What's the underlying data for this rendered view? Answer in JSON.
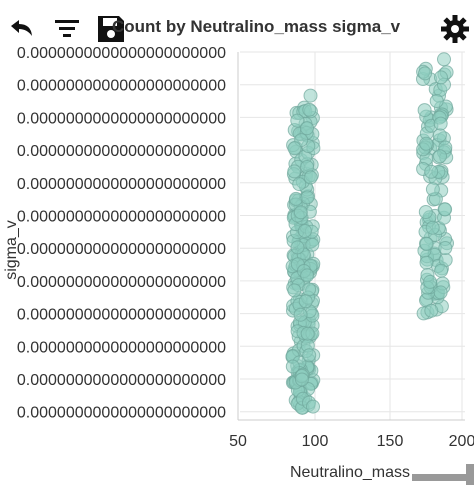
{
  "toolbar": {
    "undo_icon": "undo-icon",
    "filter_icon": "filter-icon",
    "save_icon": "save-icon",
    "gear_icon": "gear-icon",
    "title": "Count by Neutralino_mass sigma_v"
  },
  "chart_data": {
    "type": "scatter",
    "title": "Count by Neutralino_mass sigma_v",
    "xlabel": "Neutralino_mass",
    "ylabel": "sigma_v",
    "xlim": [
      50,
      200
    ],
    "x_ticks": [
      "50",
      "100",
      "150",
      "200"
    ],
    "y_ticks": [
      "0.0000000000000000000000",
      "0.0000000000000000000000",
      "0.0000000000000000000000",
      "0.0000000000000000000000",
      "0.0000000000000000000000",
      "0.0000000000000000000000",
      "0.0000000000000000000000",
      "0.0000000000000000000000",
      "0.0000000000000000000000",
      "0.0000000000000000000000",
      "0.0000000000000000000000",
      "0.0000000000000000000000"
    ],
    "grid": true,
    "marker_color": "#8ecdc0",
    "marker_stroke": "#6fa79b",
    "clusters": [
      {
        "x_min": 85,
        "x_max": 99,
        "y_min": 0.02,
        "y_max": 0.87,
        "count": 230
      },
      {
        "x_min": 172,
        "x_max": 188,
        "y_min": 0.27,
        "y_max": 0.96,
        "count": 110
      }
    ],
    "outliers": [
      {
        "x": 97,
        "y": 0.88
      },
      {
        "x": 186,
        "y": 0.91
      },
      {
        "x": 186,
        "y": 0.98
      },
      {
        "x": 184,
        "y": 0.93
      }
    ]
  }
}
